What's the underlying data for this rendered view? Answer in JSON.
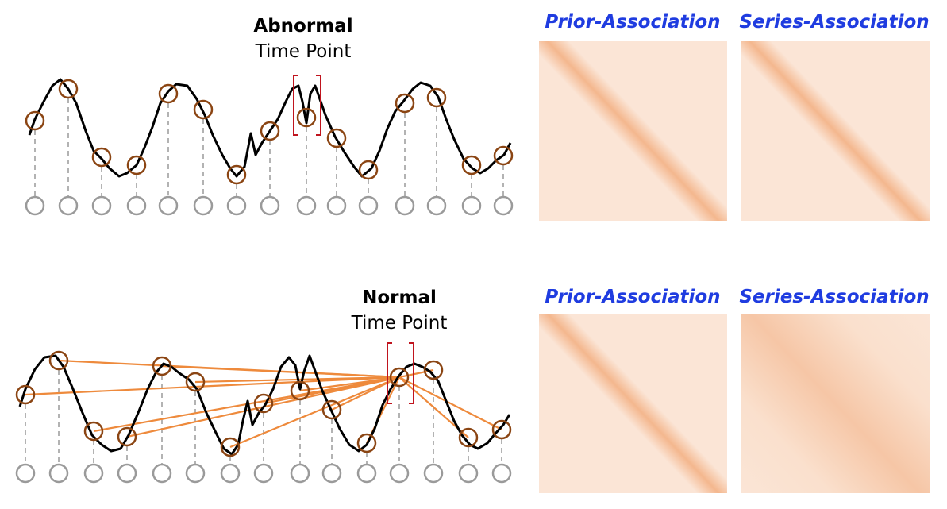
{
  "colors": {
    "assoc_title": "#1f3ce0",
    "curve": "#000000",
    "marker_point": "#8b4513",
    "base_point": "#9a9a9a",
    "dash": "#9a9a9a",
    "bracket": "#c0141e",
    "attention_line": "#ee8a3c",
    "map_background": "#fbe5d6",
    "map_diagonal": "#f4b78e"
  },
  "top_panel": {
    "label_bold": "Abnormal",
    "label_regular": "Time Point",
    "prior_title": "Prior-Association",
    "series_title": "Series-Association"
  },
  "bottom_panel": {
    "label_bold": "Normal",
    "label_regular": "Time Point",
    "prior_title": "Prior-Association",
    "series_title": "Series-Association"
  }
}
